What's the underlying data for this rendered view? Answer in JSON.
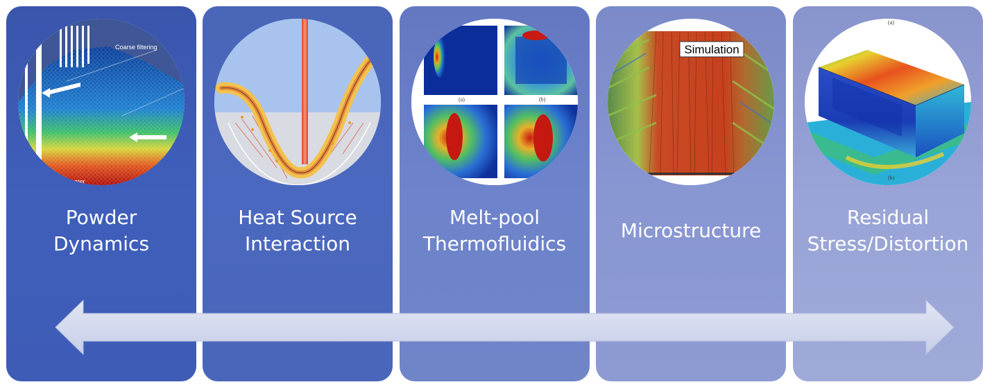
{
  "stages": [
    {
      "id": "powder",
      "label_lines": [
        "Powder",
        "Dynamics"
      ],
      "icon": "powder-bed-simulation",
      "inset_texts": [
        "Coarse filtering",
        "under recoater"
      ]
    },
    {
      "id": "heat",
      "label_lines": [
        "Heat Source",
        "Interaction"
      ],
      "icon": "laser-beam-keyhole"
    },
    {
      "id": "meltpool",
      "label_lines": [
        "Melt-pool",
        "Thermofluidics"
      ],
      "icon": "meltpool-temperature-maps",
      "inset_texts": [
        "(a)",
        "(b)"
      ]
    },
    {
      "id": "micro",
      "label_lines": [
        "Microstructure"
      ],
      "icon": "grain-microstructure",
      "inset_texts": [
        "Simulation"
      ]
    },
    {
      "id": "stress",
      "label_lines": [
        "Residual",
        "Stress/Distortion"
      ],
      "icon": "stress-contour-block",
      "inset_texts": [
        "(a)",
        "(b)"
      ]
    }
  ],
  "arrow": {
    "type": "double-headed",
    "color": "#d2d8ee"
  },
  "colors": {
    "panel_1": "#3f5fbb",
    "panel_2": "#4b68c0",
    "panel_3": "#6d83cb",
    "panel_4": "#8896d2",
    "panel_5": "#98a3d7",
    "label_text": "#ffffff"
  }
}
